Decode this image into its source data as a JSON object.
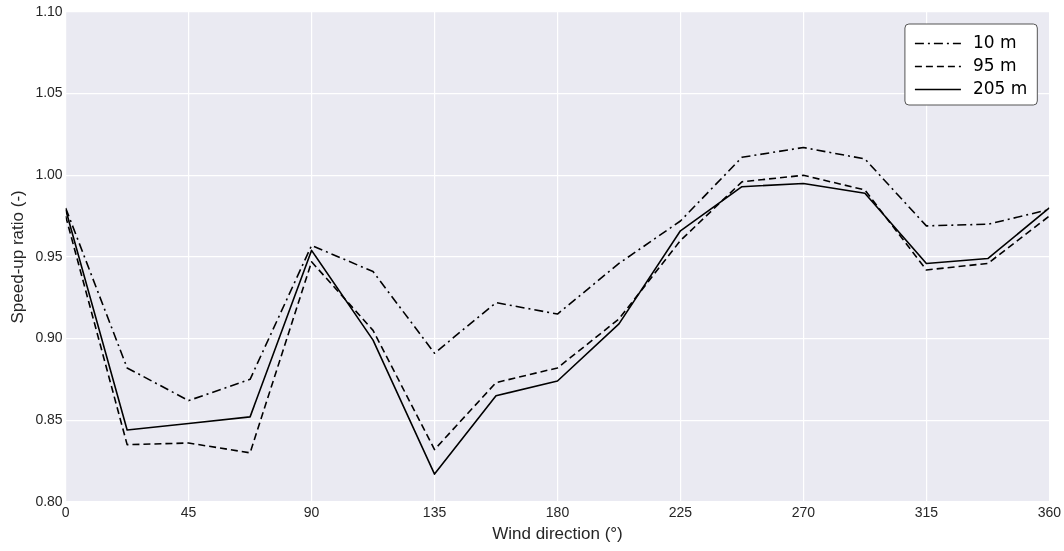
{
  "chart_data": {
    "type": "line",
    "xlabel": "Wind direction (°)",
    "ylabel": "Speed-up ratio (-)",
    "x": [
      0,
      22.5,
      45,
      67.5,
      90,
      112.5,
      135,
      157.5,
      180,
      202.5,
      225,
      247.5,
      270,
      292.5,
      315,
      337.5,
      360
    ],
    "series": [
      {
        "name": "10 m",
        "color": "#000000",
        "line_style": "dashdot",
        "values": [
          0.98,
          0.882,
          0.862,
          0.875,
          0.957,
          0.941,
          0.891,
          0.922,
          0.915,
          0.946,
          0.972,
          1.011,
          1.017,
          1.01,
          0.969,
          0.97,
          0.979
        ]
      },
      {
        "name": "95 m",
        "color": "#000000",
        "line_style": "dashed",
        "values": [
          0.975,
          0.835,
          0.836,
          0.83,
          0.947,
          0.905,
          0.832,
          0.873,
          0.882,
          0.912,
          0.96,
          0.996,
          1.0,
          0.991,
          0.942,
          0.946,
          0.975
        ]
      },
      {
        "name": "205 m",
        "color": "#000000",
        "line_style": "solid",
        "values": [
          0.979,
          0.844,
          0.848,
          0.852,
          0.954,
          0.899,
          0.817,
          0.865,
          0.874,
          0.909,
          0.966,
          0.993,
          0.995,
          0.989,
          0.946,
          0.949,
          0.98
        ]
      }
    ],
    "xlim": [
      0,
      360
    ],
    "xticks": [
      0,
      45,
      90,
      135,
      180,
      225,
      270,
      315,
      360
    ],
    "ylim": [
      0.8,
      1.1
    ],
    "yticks": [
      {
        "value": 0.8,
        "label": "0.80"
      },
      {
        "value": 0.85,
        "label": "0.85"
      },
      {
        "value": 0.9,
        "label": "0.90"
      },
      {
        "value": 0.95,
        "label": "0.95"
      },
      {
        "value": 1.0,
        "label": "1.00"
      },
      {
        "value": 1.05,
        "label": "1.05"
      },
      {
        "value": 1.1,
        "label": "1.10"
      }
    ],
    "grid": true,
    "legend": "top right",
    "marker": "none"
  }
}
